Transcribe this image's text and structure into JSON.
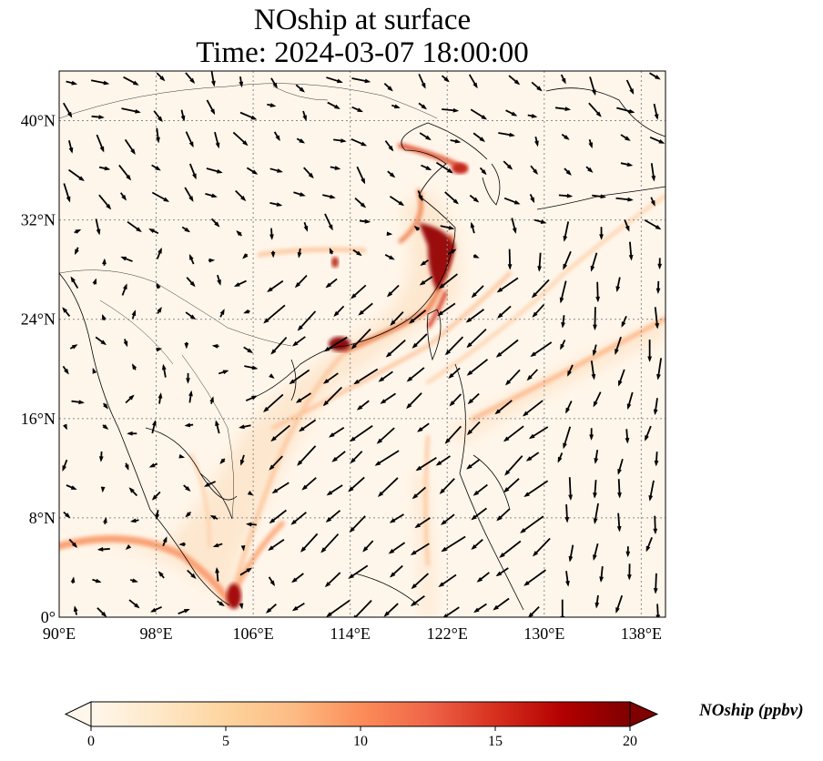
{
  "title": {
    "line1": "NOship at surface",
    "line2": "Time: 2024-03-07 18:00:00"
  },
  "map": {
    "lon_range": [
      90,
      140
    ],
    "lat_range": [
      0,
      44
    ],
    "lon_ticks": [
      "90°E",
      "98°E",
      "106°E",
      "114°E",
      "122°E",
      "130°E",
      "138°E"
    ],
    "lat_ticks": [
      "0°",
      "8°N",
      "16°N",
      "24°N",
      "32°N",
      "40°N"
    ],
    "gridlines": true
  },
  "colorbar": {
    "label": "NOship (ppbv)",
    "ticks": [
      "0",
      "5",
      "10",
      "15",
      "20"
    ],
    "range": [
      0,
      20
    ],
    "extend": "both",
    "colormap": "OrRd",
    "colors": [
      "#fff7ec",
      "#fee8c8",
      "#fdd49e",
      "#fdbb84",
      "#fc8d59",
      "#ef6548",
      "#d7301f",
      "#b30000",
      "#7f0000"
    ]
  }
}
